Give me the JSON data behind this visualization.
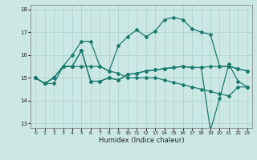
{
  "xlabel": "Humidex (Indice chaleur)",
  "bg_color": "#cce8e5",
  "grid_color": "#aad0cc",
  "line_color": "#1a7a6e",
  "xlim": [
    -0.5,
    23.5
  ],
  "ylim": [
    12.8,
    18.2
  ],
  "yticks": [
    13,
    14,
    15,
    16,
    17,
    18
  ],
  "xticks": [
    0,
    1,
    2,
    3,
    4,
    5,
    6,
    7,
    8,
    9,
    10,
    11,
    12,
    13,
    14,
    15,
    16,
    17,
    18,
    19,
    20,
    21,
    22,
    23
  ],
  "line1_x": [
    0,
    1,
    2,
    3,
    4,
    5,
    6,
    7,
    8,
    9,
    10,
    11,
    12,
    13,
    14,
    15,
    16,
    17,
    18,
    19,
    20,
    21,
    22,
    23
  ],
  "line1_y": [
    15.0,
    14.75,
    15.0,
    15.5,
    16.0,
    16.6,
    16.6,
    15.5,
    15.3,
    16.4,
    16.8,
    17.1,
    16.8,
    17.05,
    17.55,
    17.65,
    17.55,
    17.15,
    17.0,
    16.9,
    15.5,
    15.5,
    15.4,
    15.3
  ],
  "line2_x": [
    0,
    1,
    2,
    3,
    4,
    5,
    6,
    7,
    8,
    9,
    10,
    11,
    12,
    13,
    14,
    15,
    16,
    17,
    18,
    19,
    20,
    21,
    22,
    23
  ],
  "line2_y": [
    15.0,
    14.75,
    15.0,
    15.5,
    15.5,
    16.2,
    14.85,
    14.85,
    15.0,
    14.9,
    15.15,
    15.2,
    15.3,
    15.35,
    15.4,
    15.45,
    15.5,
    15.45,
    15.45,
    15.5,
    15.5,
    15.5,
    15.4,
    15.3
  ],
  "line3_x": [
    0,
    1,
    2,
    3,
    4,
    5,
    6,
    7,
    8,
    9,
    10,
    11,
    12,
    13,
    14,
    15,
    16,
    17,
    18,
    19,
    20,
    21,
    22,
    23
  ],
  "line3_y": [
    15.0,
    14.75,
    15.0,
    15.5,
    15.5,
    16.2,
    14.85,
    14.85,
    15.0,
    14.9,
    15.15,
    15.2,
    15.3,
    15.35,
    15.4,
    15.45,
    15.5,
    15.45,
    15.45,
    12.7,
    14.1,
    15.6,
    14.85,
    14.6
  ],
  "line4_x": [
    0,
    1,
    2,
    3,
    4,
    5,
    6,
    7,
    8,
    9,
    10,
    11,
    12,
    13,
    14,
    15,
    16,
    17,
    18,
    19,
    20,
    21,
    22,
    23
  ],
  "line4_y": [
    15.0,
    14.75,
    14.75,
    15.5,
    15.5,
    15.5,
    15.5,
    15.5,
    15.3,
    15.2,
    15.0,
    15.0,
    15.0,
    15.0,
    14.9,
    14.8,
    14.7,
    14.6,
    14.5,
    14.4,
    14.3,
    14.2,
    14.6,
    14.6
  ]
}
